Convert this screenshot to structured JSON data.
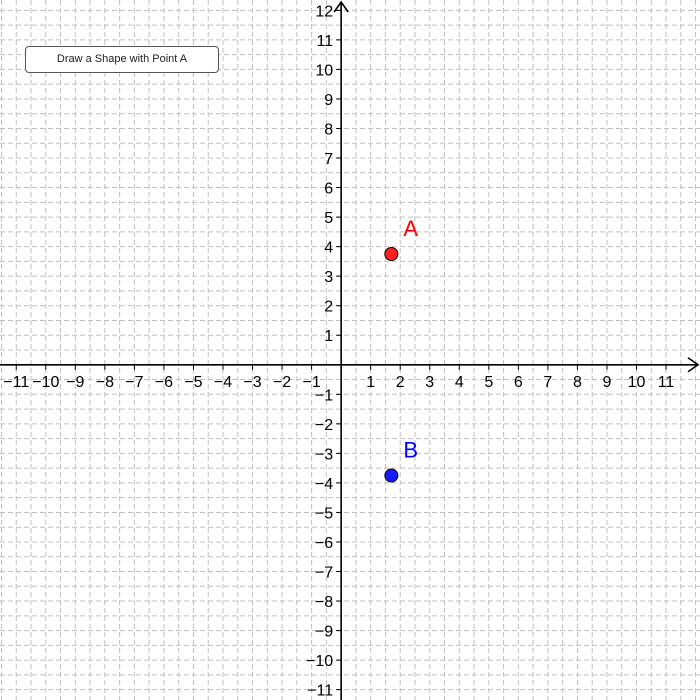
{
  "toolbar": {
    "button_label": "Draw a Shape with Point A"
  },
  "axes": {
    "x_range": [
      -11.55,
      12.15
    ],
    "y_range": [
      -11.35,
      12.35
    ],
    "x_tick_labels": [
      "−11",
      "−10",
      "−9",
      "−8",
      "−7",
      "−6",
      "−5",
      "−4",
      "−3",
      "−2",
      "−1",
      "1",
      "2",
      "3",
      "4",
      "5",
      "6",
      "7",
      "8",
      "9",
      "10",
      "11"
    ],
    "x_tick_values": [
      -11,
      -10,
      -9,
      -8,
      -7,
      -6,
      -5,
      -4,
      -3,
      -2,
      -1,
      1,
      2,
      3,
      4,
      5,
      6,
      7,
      8,
      9,
      10,
      11
    ],
    "y_tick_labels": [
      "−11",
      "−10",
      "−9",
      "−8",
      "−7",
      "−6",
      "−5",
      "−4",
      "−3",
      "−2",
      "−1",
      "1",
      "2",
      "3",
      "4",
      "5",
      "6",
      "7",
      "8",
      "9",
      "10",
      "11",
      "12"
    ],
    "y_tick_values": [
      -11,
      -10,
      -9,
      -8,
      -7,
      -6,
      -5,
      -4,
      -3,
      -2,
      -1,
      1,
      2,
      3,
      4,
      5,
      6,
      7,
      8,
      9,
      10,
      11,
      12
    ],
    "grid": true,
    "grid_style": "dashed"
  },
  "points": [
    {
      "name": "A",
      "label": "A",
      "x": 1.7,
      "y": 3.75,
      "color": "#ff2020",
      "label_color": "#ff0000"
    },
    {
      "name": "B",
      "label": "B",
      "x": 1.7,
      "y": -3.75,
      "color": "#1a1aff",
      "label_color": "#0000ff"
    }
  ],
  "colors": {
    "grid": "#c0c0c0",
    "axis": "#000000",
    "background": "#ffffff"
  }
}
